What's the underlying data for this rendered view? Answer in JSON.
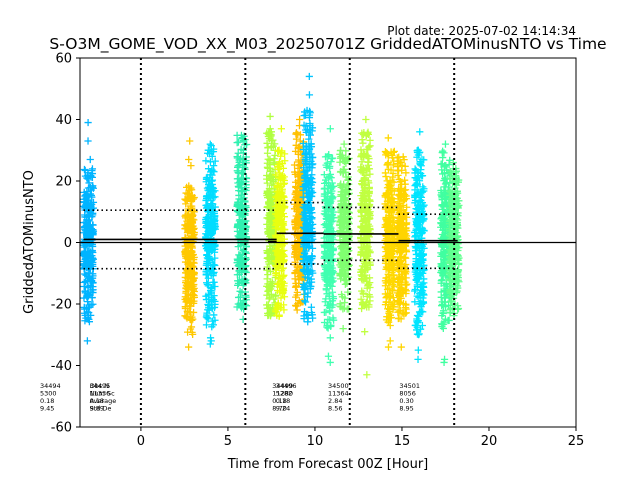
{
  "chart_data": {
    "type": "scatter",
    "title": "S-O3M_GOME_VOD_XX_M03_20250701Z GriddedATOMinusNTO vs Time",
    "subtitle": "Plot date: 2025-07-02 14:14:34",
    "xlabel": "Time from Forecast 00Z [Hour]",
    "ylabel": "GriddedATOMinusNTO",
    "xlim": [
      -3.5,
      25
    ],
    "ylim": [
      -60,
      60
    ],
    "xticks": [
      0,
      5,
      10,
      15,
      20,
      25
    ],
    "yticks": [
      -60,
      -40,
      -20,
      0,
      20,
      40,
      60
    ],
    "grid": false,
    "marker": "+",
    "zero_line": 0,
    "vertical_lines": [
      0,
      6,
      12,
      18
    ],
    "clusters": [
      {
        "x": -3.0,
        "color": "#00b4ff",
        "y_low": -26,
        "y_high": 24,
        "outliers": [
          39,
          33,
          27,
          -32,
          -25
        ]
      },
      {
        "x": 2.8,
        "color": "#ffc800",
        "y_low": -30,
        "y_high": 20,
        "outliers": [
          33,
          27,
          25,
          -34
        ]
      },
      {
        "x": 4.0,
        "color": "#00dcff",
        "y_low": -28,
        "y_high": 32,
        "outliers": [
          -33,
          -31,
          28,
          -32
        ]
      },
      {
        "x": 5.8,
        "color": "#30f0b0",
        "y_low": -22,
        "y_high": 35,
        "outliers": [
          -25,
          30
        ]
      },
      {
        "x": 7.5,
        "color": "#b0ff40",
        "y_low": -24,
        "y_high": 36,
        "outliers": [
          41,
          37,
          36
        ]
      },
      {
        "x": 8.0,
        "color": "#e8ff10",
        "y_low": -24,
        "y_high": 30,
        "outliers": [
          37,
          -24
        ]
      },
      {
        "x": 9.1,
        "color": "#ffc000",
        "y_low": -22,
        "y_high": 36,
        "outliers": [
          40,
          38
        ]
      },
      {
        "x": 9.6,
        "color": "#00c4ff",
        "y_low": -26,
        "y_high": 44,
        "outliers": [
          54,
          48
        ]
      },
      {
        "x": 10.8,
        "color": "#40ffb0",
        "y_low": -28,
        "y_high": 30,
        "outliers": [
          37,
          -37,
          -39,
          -31
        ]
      },
      {
        "x": 11.7,
        "color": "#80ff70",
        "y_low": -22,
        "y_high": 30,
        "outliers": [
          -28,
          32
        ]
      },
      {
        "x": 12.9,
        "color": "#c0ff40",
        "y_low": -22,
        "y_high": 36,
        "outliers": [
          -43,
          -29,
          40
        ]
      },
      {
        "x": 14.3,
        "color": "#ffd800",
        "y_low": -26,
        "y_high": 30,
        "outliers": [
          34,
          -32,
          -34,
          -27
        ]
      },
      {
        "x": 15.0,
        "color": "#ffd400",
        "y_low": -25,
        "y_high": 28,
        "outliers": [
          -34,
          26
        ]
      },
      {
        "x": 16.0,
        "color": "#00e4ff",
        "y_low": -30,
        "y_high": 30,
        "outliers": [
          -35,
          -38,
          36,
          30
        ]
      },
      {
        "x": 17.5,
        "color": "#40ffa0",
        "y_low": -28,
        "y_high": 30,
        "outliers": [
          -38,
          32,
          -39
        ]
      },
      {
        "x": 18.0,
        "color": "#60ff90",
        "y_low": -24,
        "y_high": 25,
        "outliers": [
          26,
          -20
        ]
      }
    ],
    "mean_segments": [
      {
        "x0": -3.3,
        "x1": 7.8,
        "y": 1.0
      },
      {
        "x0": 7.3,
        "x1": 7.8,
        "y": 0.3
      },
      {
        "x0": 7.8,
        "x1": 10.5,
        "y": 3.0
      },
      {
        "x0": 10.5,
        "x1": 14.8,
        "y": 2.8
      },
      {
        "x0": 14.8,
        "x1": 18.2,
        "y": 0.6
      }
    ],
    "std_segments": [
      {
        "x0": -3.3,
        "x1": 7.8,
        "y": 10.5
      },
      {
        "x0": -3.3,
        "x1": 7.8,
        "y": -8.5
      },
      {
        "x0": 7.8,
        "x1": 10.5,
        "y": 13.0
      },
      {
        "x0": 7.8,
        "x1": 10.5,
        "y": -7.0
      },
      {
        "x0": 10.5,
        "x1": 14.8,
        "y": 11.4
      },
      {
        "x0": 10.5,
        "x1": 14.8,
        "y": -5.8
      },
      {
        "x0": 14.8,
        "x1": 18.2,
        "y": 9.2
      },
      {
        "x0": 14.8,
        "x1": 18.2,
        "y": -8.4
      }
    ],
    "annotations": [
      {
        "x": -2.95,
        "lines": [
          "Obs N",
          "Num Sc",
          "Average",
          "Std De"
        ]
      },
      {
        "x": -5.8,
        "lines": [
          "34494",
          "5300",
          "0.18",
          "9.45"
        ]
      },
      {
        "x": -2.95,
        "lines": [
          "34495",
          "11336",
          "0.18",
          "9.89"
        ]
      },
      {
        "x": 7.55,
        "lines": [
          "34499",
          "11280",
          "0.18",
          "8.70"
        ]
      },
      {
        "x": 7.75,
        "lines": [
          "34496",
          "5282",
          "0.18",
          "9.24"
        ]
      },
      {
        "x": 10.75,
        "lines": [
          "34500",
          "11364",
          "2.84",
          "8.56"
        ]
      },
      {
        "x": 14.85,
        "lines": [
          "34501",
          "8056",
          "0.30",
          "8.95"
        ]
      }
    ]
  }
}
